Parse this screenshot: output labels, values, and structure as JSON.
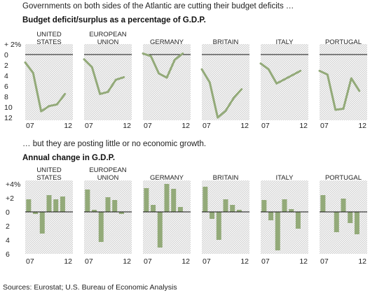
{
  "intro_top": "Governments on both sides of the Atlantic are cutting their budget deficits …",
  "intro_bottom": "… but they are posting little or no economic growth.",
  "source": "Sources: Eurostat; U.S. Bureau of Economic Analysis",
  "colors": {
    "series": "#93aa79",
    "hatch": "#c8c8c8",
    "zero_line": "#111111",
    "axis": "#555555"
  },
  "chart_data": [
    {
      "type": "line",
      "title": "Budget deficit/surplus as a percentage of G.D.P.",
      "y_ticks": [
        "+ 2%",
        "0",
        "2",
        "4",
        "6",
        "8",
        "10",
        "12"
      ],
      "y_tick_values": [
        -2,
        0,
        2,
        4,
        6,
        8,
        10,
        12
      ],
      "ylim": [
        -2,
        12.5
      ],
      "y_inverted": true,
      "x_ticks": [
        "07",
        "12"
      ],
      "x_years": [
        2007,
        2008,
        2009,
        2010,
        2011,
        2012,
        2013
      ],
      "panels": [
        {
          "name": "UNITED STATES",
          "values": [
            1.5,
            3.5,
            10.8,
            9.8,
            9.5,
            7.5
          ]
        },
        {
          "name": "EUROPEAN UNION",
          "values": [
            0.9,
            2.4,
            7.5,
            7.1,
            4.8,
            4.3
          ]
        },
        {
          "name": "GERMANY",
          "values": [
            -0.2,
            0.3,
            3.6,
            4.4,
            1.0,
            -0.2
          ]
        },
        {
          "name": "BRITAIN",
          "values": [
            2.8,
            5.3,
            12.0,
            10.7,
            8.3,
            6.6
          ]
        },
        {
          "name": "ITALY",
          "values": [
            1.7,
            2.8,
            5.5,
            4.7,
            3.9,
            3.1
          ]
        },
        {
          "name": "PORTUGAL",
          "values": [
            3.1,
            3.8,
            10.5,
            10.3,
            4.5,
            6.9
          ]
        }
      ]
    },
    {
      "type": "bar",
      "title": "Annual change in G.D.P.",
      "y_ticks": [
        "+4%",
        "+2",
        "0",
        "2",
        "4",
        "6"
      ],
      "y_tick_values": [
        4,
        2,
        0,
        -2,
        -4,
        -6
      ],
      "ylim": [
        -6,
        4.5
      ],
      "x_ticks": [
        "07",
        "12"
      ],
      "x_years": [
        2007,
        2008,
        2009,
        2010,
        2011,
        2012,
        2013
      ],
      "panels": [
        {
          "name": "UNITED STATES",
          "values": [
            1.8,
            -0.3,
            -3.1,
            2.4,
            1.8,
            2.2
          ]
        },
        {
          "name": "EUROPEAN UNION",
          "values": [
            3.2,
            0.3,
            -4.3,
            2.1,
            1.7,
            -0.3
          ]
        },
        {
          "name": "GERMANY",
          "values": [
            3.4,
            1.0,
            -5.1,
            4.0,
            3.3,
            0.7
          ]
        },
        {
          "name": "BRITAIN",
          "values": [
            3.6,
            -1.0,
            -4.0,
            1.8,
            1.0,
            0.3
          ]
        },
        {
          "name": "ITALY",
          "values": [
            1.7,
            -1.2,
            -5.5,
            1.8,
            0.4,
            -2.4
          ]
        },
        {
          "name": "PORTUGAL",
          "values": [
            2.4,
            0.0,
            -2.9,
            1.9,
            -1.6,
            -3.2
          ]
        }
      ]
    }
  ]
}
